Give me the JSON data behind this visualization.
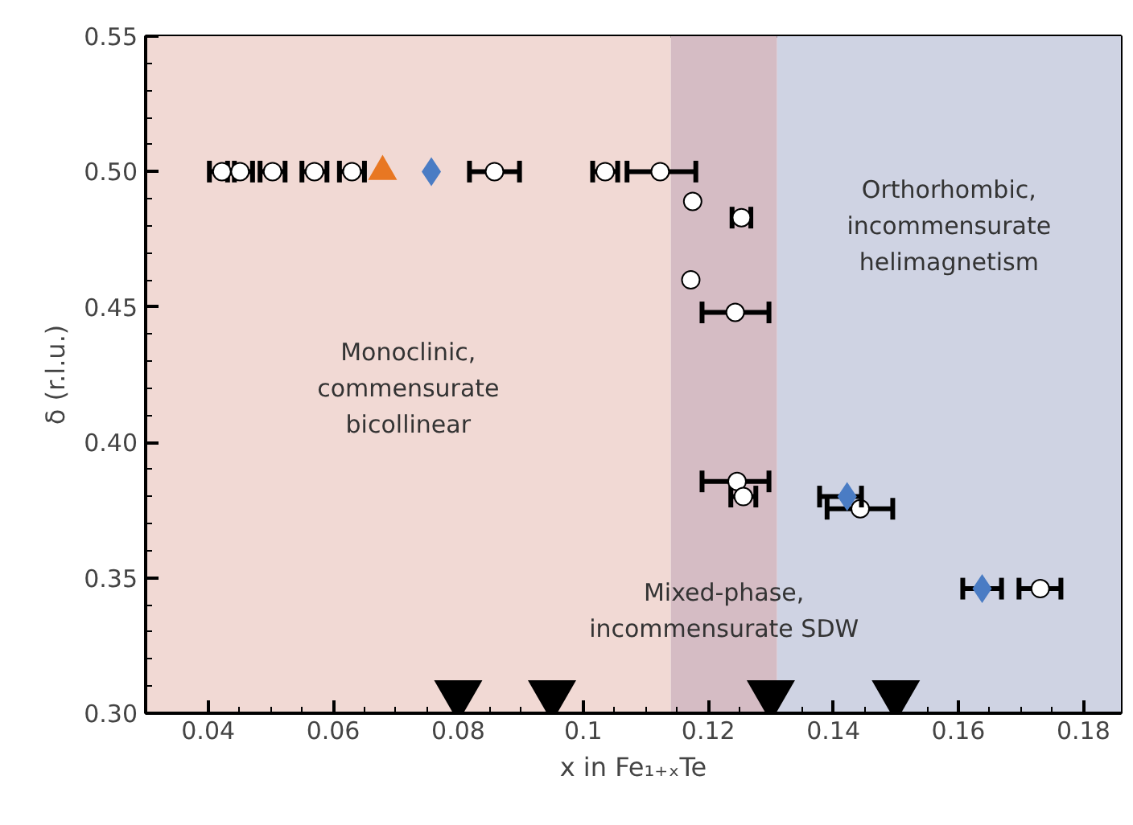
{
  "chart_data": {
    "type": "scatter",
    "xlabel": "x in Fe₁₊ₓTe",
    "ylabel": "δ (r.l.u.)",
    "xlim": [
      0.03,
      0.186
    ],
    "ylim": [
      0.3,
      0.55
    ],
    "xticks": [
      0.04,
      0.06,
      0.08,
      0.1,
      0.12,
      0.14,
      0.16,
      0.18
    ],
    "yticks": [
      {
        "value": 0.3,
        "label": "0.30"
      },
      0.35,
      {
        "value": 0.4,
        "label": "0.40"
      },
      0.45,
      {
        "value": 0.5,
        "label": "0.50"
      },
      0.55
    ],
    "grid": false,
    "bands": [
      {
        "axis": "x",
        "from": 0.03,
        "to": 0.114,
        "label": "Monoclinic,\ncommensurate\nbicollinear",
        "color": "#f1d9d4"
      },
      {
        "axis": "x",
        "from": 0.114,
        "to": 0.131,
        "label": "Mixed-phase,\nincommensurate SDW",
        "color": "#d5bcc4"
      },
      {
        "axis": "x",
        "from": 0.131,
        "to": 0.186,
        "label": "Orthorhombic,\nincommensurate\nhelimagnetism",
        "color": "#cfd3e3"
      }
    ],
    "series": [
      {
        "color": "#ffffff",
        "marker": "circle",
        "x": [
          0.0422,
          0.0451,
          0.0503,
          0.057,
          0.063,
          0.0858,
          0.1035,
          0.1123,
          0.1175,
          0.1253,
          0.1172,
          0.1243,
          0.1246,
          0.1256,
          0.1443,
          0.1731
        ],
        "values": [
          0.5,
          0.5,
          0.5,
          0.5,
          0.5,
          0.5,
          0.5,
          0.5,
          0.489,
          0.483,
          0.46,
          0.448,
          0.3856,
          0.38,
          0.3755,
          0.346
        ],
        "xerrors": [
          0.002,
          0.002,
          0.002,
          0.002,
          0.002,
          0.004,
          0.002,
          [
            0.107,
            0.118
          ],
          null,
          0.0015,
          null,
          [
            0.119,
            0.1297
          ],
          [
            0.119,
            0.1297
          ],
          0.002,
          [
            0.139,
            0.1495
          ],
          [
            0.1697,
            0.1764
          ]
        ]
      },
      {
        "color": "#e87722",
        "marker": "triangle",
        "x": [
          0.0679
        ],
        "values": [
          0.5
        ]
      },
      {
        "color": "#4a7cc4",
        "marker": "diamond",
        "x": [
          0.0757,
          0.1422,
          0.1638
        ],
        "values": [
          0.5,
          0.38,
          0.346
        ],
        "xerrors": [
          null,
          [
            0.1378,
            0.1445
          ],
          [
            0.1607,
            0.1669
          ]
        ]
      },
      {
        "color": "#000000",
        "marker": "triangle",
        "x": [
          0.08,
          0.095,
          0.13,
          0.15
        ],
        "values": [
          0.307,
          0.307,
          0.307,
          0.307
        ]
      }
    ]
  }
}
